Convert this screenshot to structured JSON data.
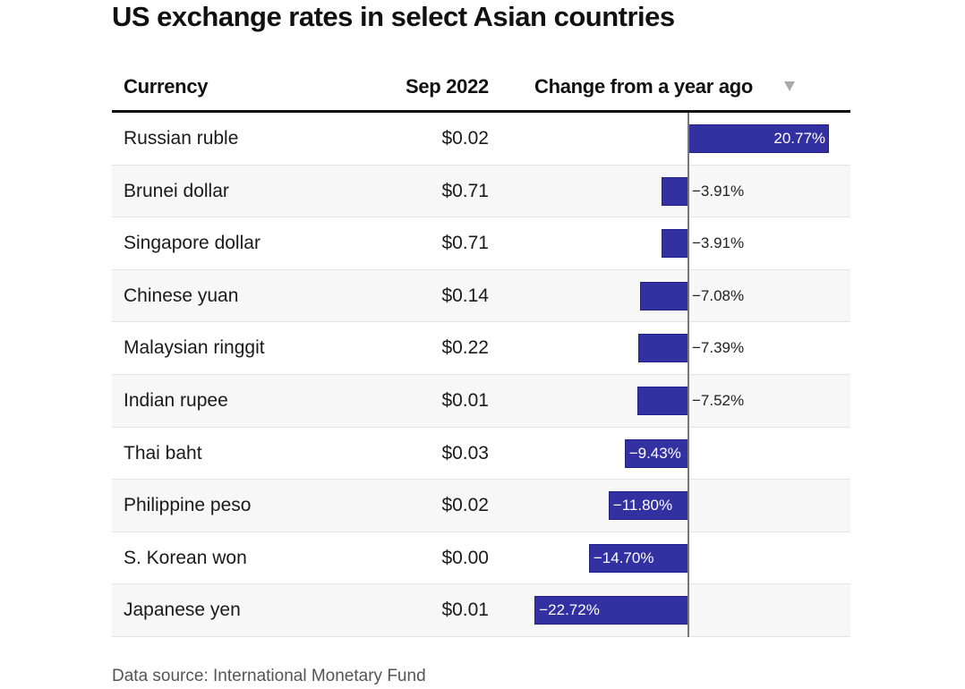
{
  "title": "US exchange rates in select Asian countries",
  "headers": {
    "currency": "Currency",
    "value": "Sep 2022",
    "change": "Change from a year ago"
  },
  "sort_icon": "triangle-down",
  "colors": {
    "bar": "#3330a1",
    "row_alt": "#f7f7f7"
  },
  "footer": {
    "source": "Data source: International Monetary Fund"
  },
  "chart_data": {
    "type": "table",
    "title": "US exchange rates in select Asian countries",
    "columns": [
      "Currency",
      "Sep 2022",
      "Change from a year ago"
    ],
    "sorted_by": "Change from a year ago",
    "sort_direction": "descending",
    "bar_column": "Change from a year ago",
    "bar_range": [
      -22.72,
      20.77
    ],
    "rows": [
      {
        "currency": "Russian ruble",
        "value": "$0.02",
        "change": 20.77,
        "change_label": "20.77%"
      },
      {
        "currency": "Brunei dollar",
        "value": "$0.71",
        "change": -3.91,
        "change_label": "−3.91%"
      },
      {
        "currency": "Singapore dollar",
        "value": "$0.71",
        "change": -3.91,
        "change_label": "−3.91%"
      },
      {
        "currency": "Chinese yuan",
        "value": "$0.14",
        "change": -7.08,
        "change_label": "−7.08%"
      },
      {
        "currency": "Malaysian ringgit",
        "value": "$0.22",
        "change": -7.39,
        "change_label": "−7.39%"
      },
      {
        "currency": "Indian rupee",
        "value": "$0.01",
        "change": -7.52,
        "change_label": "−7.52%"
      },
      {
        "currency": "Thai baht",
        "value": "$0.03",
        "change": -9.43,
        "change_label": "−9.43%"
      },
      {
        "currency": "Philippine peso",
        "value": "$0.02",
        "change": -11.8,
        "change_label": "−11.80%"
      },
      {
        "currency": "S. Korean won",
        "value": "$0.00",
        "change": -14.7,
        "change_label": "−14.70%"
      },
      {
        "currency": "Japanese yen",
        "value": "$0.01",
        "change": -22.72,
        "change_label": "−22.72%"
      }
    ],
    "source": "Data source: International Monetary Fund"
  }
}
